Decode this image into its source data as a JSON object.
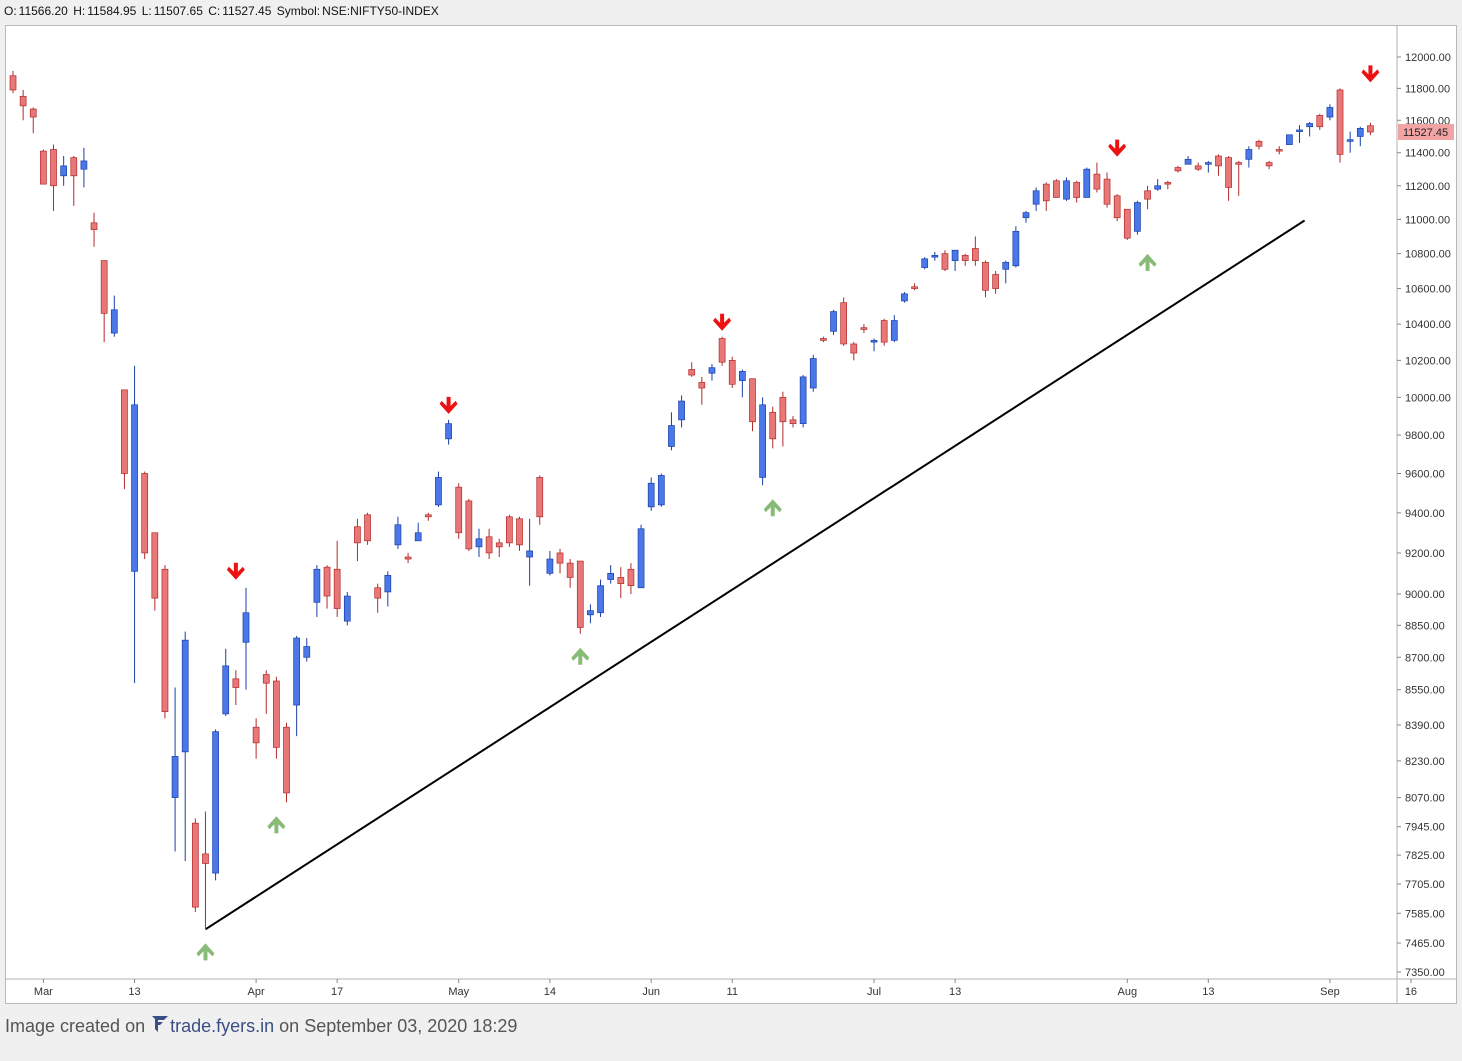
{
  "header": {
    "o_label": "O:",
    "o_value": "11566.20",
    "h_label": "H:",
    "h_value": "11584.95",
    "l_label": "L:",
    "l_value": "11507.65",
    "c_label": "C:",
    "c_value": "11527.45",
    "symbol_label": "Symbol:",
    "symbol_value": "NSE:NIFTY50-INDEX"
  },
  "footer": {
    "prefix": "Image created on",
    "brand": "trade.fyers.in",
    "suffix": "on September 03, 2020 18:29"
  },
  "colors": {
    "bull": "#4a78e8",
    "bear": "#e87878",
    "wick_bull": "#1a3fa8",
    "wick_bear": "#b22a2a",
    "trendline": "#000000",
    "down_arrow": "#ee1111",
    "up_arrow": "#88bb77",
    "last_price_bg": "#f2a3a3"
  },
  "chart_data": {
    "type": "candlestick",
    "symbol": "NSE:NIFTY50-INDEX",
    "scale": "log",
    "y_ticks": [
      "12000.00",
      "11800.00",
      "11600.00",
      "11400.00",
      "11200.00",
      "11000.00",
      "10800.00",
      "10600.00",
      "10400.00",
      "10200.00",
      "10000.00",
      "9800.00",
      "9600.00",
      "9400.00",
      "9200.00",
      "9000.00",
      "8850.00",
      "8700.00",
      "8550.00",
      "8390.00",
      "8230.00",
      "8070.00",
      "7945.00",
      "7825.00",
      "7705.00",
      "7585.00",
      "7465.00",
      "7350.00"
    ],
    "x_ticks": [
      "Mar",
      "13",
      "Apr",
      "17",
      "May",
      "14",
      "Jun",
      "11",
      "Jul",
      "13",
      "Aug",
      "13",
      "Sep",
      "16"
    ],
    "last_price": "11527.45",
    "candles": [
      {
        "date": "2020-02-27",
        "o": 11880,
        "h": 11910,
        "l": 11770,
        "c": 11790
      },
      {
        "date": "2020-02-28",
        "o": 11750,
        "h": 11790,
        "l": 11600,
        "c": 11690
      },
      {
        "date": "2020-03-02",
        "o": 11670,
        "h": 11680,
        "l": 11520,
        "c": 11620
      },
      {
        "date": "2020-03-03",
        "o": 11410,
        "h": 11420,
        "l": 11210,
        "c": 11210
      },
      {
        "date": "2020-03-04",
        "o": 11420,
        "h": 11450,
        "l": 11050,
        "c": 11200
      },
      {
        "date": "2020-03-05",
        "o": 11260,
        "h": 11380,
        "l": 11200,
        "c": 11320
      },
      {
        "date": "2020-03-06",
        "o": 11370,
        "h": 11380,
        "l": 11080,
        "c": 11260
      },
      {
        "date": "2020-03-09",
        "o": 11300,
        "h": 11430,
        "l": 11190,
        "c": 11350
      },
      {
        "date": "2020-03-10",
        "o": 10980,
        "h": 11040,
        "l": 10840,
        "c": 10940
      },
      {
        "date": "2020-03-11",
        "o": 10760,
        "h": 10760,
        "l": 10300,
        "c": 10460
      },
      {
        "date": "2020-03-12",
        "o": 10350,
        "h": 10560,
        "l": 10330,
        "c": 10480
      },
      {
        "date": "2020-03-13",
        "o": 10040,
        "h": 10040,
        "l": 9520,
        "c": 9600
      },
      {
        "date": "2020-03-16",
        "o": 9110,
        "h": 10170,
        "l": 8580,
        "c": 9960
      },
      {
        "date": "2020-03-17",
        "o": 9600,
        "h": 9610,
        "l": 9170,
        "c": 9200
      },
      {
        "date": "2020-03-18",
        "o": 9300,
        "h": 9300,
        "l": 8920,
        "c": 8980
      },
      {
        "date": "2020-03-19",
        "o": 9120,
        "h": 9140,
        "l": 8420,
        "c": 8450
      },
      {
        "date": "2020-03-20",
        "o": 8070,
        "h": 8560,
        "l": 7840,
        "c": 8250
      },
      {
        "date": "2020-03-23",
        "o": 8270,
        "h": 8820,
        "l": 7800,
        "c": 8780
      },
      {
        "date": "2020-03-24",
        "o": 7960,
        "h": 7980,
        "l": 7590,
        "c": 7610
      },
      {
        "date": "2020-03-25",
        "o": 7830,
        "h": 8010,
        "l": 7520,
        "c": 7790
      },
      {
        "date": "2020-03-26",
        "o": 7750,
        "h": 8370,
        "l": 7720,
        "c": 8360
      },
      {
        "date": "2020-03-27",
        "o": 8440,
        "h": 8740,
        "l": 8430,
        "c": 8660
      },
      {
        "date": "2020-03-30",
        "o": 8600,
        "h": 8640,
        "l": 8480,
        "c": 8560
      },
      {
        "date": "2020-03-31",
        "o": 8770,
        "h": 9030,
        "l": 8550,
        "c": 8910
      },
      {
        "date": "2020-04-01",
        "o": 8380,
        "h": 8420,
        "l": 8240,
        "c": 8310
      },
      {
        "date": "2020-04-02",
        "o": 8620,
        "h": 8640,
        "l": 8440,
        "c": 8580
      },
      {
        "date": "2020-04-03",
        "o": 8590,
        "h": 8610,
        "l": 8240,
        "c": 8290
      },
      {
        "date": "2020-04-06",
        "o": 8380,
        "h": 8400,
        "l": 8050,
        "c": 8090
      },
      {
        "date": "2020-04-07",
        "o": 8480,
        "h": 8800,
        "l": 8340,
        "c": 8790
      },
      {
        "date": "2020-04-08",
        "o": 8700,
        "h": 8790,
        "l": 8680,
        "c": 8750
      },
      {
        "date": "2020-04-09",
        "o": 8960,
        "h": 9140,
        "l": 8890,
        "c": 9120
      },
      {
        "date": "2020-04-13",
        "o": 9130,
        "h": 9140,
        "l": 8930,
        "c": 8990
      },
      {
        "date": "2020-04-15",
        "o": 9120,
        "h": 9260,
        "l": 8890,
        "c": 8930
      },
      {
        "date": "2020-04-16",
        "o": 8870,
        "h": 9010,
        "l": 8850,
        "c": 8990
      },
      {
        "date": "2020-04-17",
        "o": 9330,
        "h": 9370,
        "l": 9160,
        "c": 9250
      },
      {
        "date": "2020-04-20",
        "o": 9390,
        "h": 9400,
        "l": 9240,
        "c": 9260
      },
      {
        "date": "2020-04-21",
        "o": 9030,
        "h": 9050,
        "l": 8910,
        "c": 8980
      },
      {
        "date": "2020-04-22",
        "o": 9010,
        "h": 9110,
        "l": 8940,
        "c": 9090
      },
      {
        "date": "2020-04-23",
        "o": 9240,
        "h": 9380,
        "l": 9220,
        "c": 9340
      },
      {
        "date": "2020-04-24",
        "o": 9180,
        "h": 9200,
        "l": 9150,
        "c": 9170
      },
      {
        "date": "2020-04-27",
        "o": 9260,
        "h": 9350,
        "l": 9260,
        "c": 9300
      },
      {
        "date": "2020-04-28",
        "o": 9390,
        "h": 9400,
        "l": 9360,
        "c": 9380
      },
      {
        "date": "2020-04-29",
        "o": 9440,
        "h": 9610,
        "l": 9430,
        "c": 9580
      },
      {
        "date": "2020-04-30",
        "o": 9780,
        "h": 9880,
        "l": 9750,
        "c": 9860
      },
      {
        "date": "2020-05-04",
        "o": 9530,
        "h": 9550,
        "l": 9270,
        "c": 9300
      },
      {
        "date": "2020-05-05",
        "o": 9460,
        "h": 9470,
        "l": 9210,
        "c": 9220
      },
      {
        "date": "2020-05-06",
        "o": 9230,
        "h": 9320,
        "l": 9180,
        "c": 9270
      },
      {
        "date": "2020-05-07",
        "o": 9280,
        "h": 9320,
        "l": 9170,
        "c": 9200
      },
      {
        "date": "2020-05-08",
        "o": 9250,
        "h": 9270,
        "l": 9180,
        "c": 9230
      },
      {
        "date": "2020-05-11",
        "o": 9380,
        "h": 9390,
        "l": 9230,
        "c": 9250
      },
      {
        "date": "2020-05-12",
        "o": 9370,
        "h": 9380,
        "l": 9210,
        "c": 9240
      },
      {
        "date": "2020-05-13",
        "o": 9180,
        "h": 9370,
        "l": 9040,
        "c": 9210
      },
      {
        "date": "2020-05-14",
        "o": 9580,
        "h": 9590,
        "l": 9340,
        "c": 9380
      },
      {
        "date": "2020-05-15",
        "o": 9100,
        "h": 9210,
        "l": 9090,
        "c": 9170
      },
      {
        "date": "2020-05-18",
        "o": 9200,
        "h": 9220,
        "l": 9100,
        "c": 9150
      },
      {
        "date": "2020-05-19",
        "o": 9150,
        "h": 9170,
        "l": 9030,
        "c": 9080
      },
      {
        "date": "2020-05-20",
        "o": 9160,
        "h": 9160,
        "l": 8810,
        "c": 8840
      },
      {
        "date": "2020-05-21",
        "o": 8900,
        "h": 8950,
        "l": 8860,
        "c": 8920
      },
      {
        "date": "2020-05-22",
        "o": 8910,
        "h": 9070,
        "l": 8890,
        "c": 9040
      },
      {
        "date": "2020-05-26",
        "o": 9070,
        "h": 9140,
        "l": 9050,
        "c": 9100
      },
      {
        "date": "2020-05-27",
        "o": 9080,
        "h": 9130,
        "l": 8980,
        "c": 9050
      },
      {
        "date": "2020-05-28",
        "o": 9120,
        "h": 9150,
        "l": 9000,
        "c": 9040
      },
      {
        "date": "2020-05-29",
        "o": 9030,
        "h": 9340,
        "l": 9030,
        "c": 9320
      },
      {
        "date": "2020-06-01",
        "o": 9430,
        "h": 9580,
        "l": 9410,
        "c": 9550
      },
      {
        "date": "2020-06-02",
        "o": 9440,
        "h": 9600,
        "l": 9430,
        "c": 9590
      },
      {
        "date": "2020-06-03",
        "o": 9740,
        "h": 9920,
        "l": 9720,
        "c": 9850
      },
      {
        "date": "2020-06-04",
        "o": 9880,
        "h": 10010,
        "l": 9840,
        "c": 9980
      },
      {
        "date": "2020-06-05",
        "o": 10150,
        "h": 10190,
        "l": 10110,
        "c": 10120
      },
      {
        "date": "2020-06-08",
        "o": 10080,
        "h": 10110,
        "l": 9960,
        "c": 10050
      },
      {
        "date": "2020-06-09",
        "o": 10130,
        "h": 10180,
        "l": 10090,
        "c": 10160
      },
      {
        "date": "2020-06-10",
        "o": 10320,
        "h": 10330,
        "l": 10170,
        "c": 10190
      },
      {
        "date": "2020-06-11",
        "o": 10200,
        "h": 10220,
        "l": 10050,
        "c": 10070
      },
      {
        "date": "2020-06-12",
        "o": 10090,
        "h": 10150,
        "l": 10000,
        "c": 10140
      },
      {
        "date": "2020-06-15",
        "o": 10100,
        "h": 10100,
        "l": 9820,
        "c": 9870
      },
      {
        "date": "2020-06-16",
        "o": 9580,
        "h": 10000,
        "l": 9540,
        "c": 9960
      },
      {
        "date": "2020-06-17",
        "o": 9920,
        "h": 9950,
        "l": 9730,
        "c": 9780
      },
      {
        "date": "2020-06-18",
        "o": 10000,
        "h": 10030,
        "l": 9740,
        "c": 9870
      },
      {
        "date": "2020-06-19",
        "o": 9880,
        "h": 9900,
        "l": 9840,
        "c": 9860
      },
      {
        "date": "2020-06-22",
        "o": 9860,
        "h": 10120,
        "l": 9840,
        "c": 10110
      },
      {
        "date": "2020-06-23",
        "o": 10050,
        "h": 10230,
        "l": 10030,
        "c": 10210
      },
      {
        "date": "2020-06-24",
        "o": 10320,
        "h": 10330,
        "l": 10300,
        "c": 10310
      },
      {
        "date": "2020-06-25",
        "o": 10360,
        "h": 10480,
        "l": 10340,
        "c": 10470
      },
      {
        "date": "2020-06-26",
        "o": 10520,
        "h": 10550,
        "l": 10280,
        "c": 10290
      },
      {
        "date": "2020-06-29",
        "o": 10290,
        "h": 10300,
        "l": 10200,
        "c": 10240
      },
      {
        "date": "2020-06-30",
        "o": 10380,
        "h": 10400,
        "l": 10350,
        "c": 10370
      },
      {
        "date": "2020-07-01",
        "o": 10300,
        "h": 10320,
        "l": 10250,
        "c": 10310
      },
      {
        "date": "2020-07-02",
        "o": 10420,
        "h": 10430,
        "l": 10280,
        "c": 10300
      },
      {
        "date": "2020-07-03",
        "o": 10310,
        "h": 10450,
        "l": 10300,
        "c": 10420
      },
      {
        "date": "2020-07-06",
        "o": 10530,
        "h": 10580,
        "l": 10520,
        "c": 10570
      },
      {
        "date": "2020-07-07",
        "o": 10610,
        "h": 10630,
        "l": 10590,
        "c": 10600
      },
      {
        "date": "2020-07-08",
        "o": 10720,
        "h": 10780,
        "l": 10710,
        "c": 10770
      },
      {
        "date": "2020-07-09",
        "o": 10780,
        "h": 10810,
        "l": 10760,
        "c": 10790
      },
      {
        "date": "2020-07-10",
        "o": 10800,
        "h": 10820,
        "l": 10700,
        "c": 10710
      },
      {
        "date": "2020-07-13",
        "o": 10760,
        "h": 10810,
        "l": 10700,
        "c": 10820
      },
      {
        "date": "2020-07-14",
        "o": 10790,
        "h": 10800,
        "l": 10730,
        "c": 10760
      },
      {
        "date": "2020-07-15",
        "o": 10830,
        "h": 10900,
        "l": 10730,
        "c": 10760
      },
      {
        "date": "2020-07-16",
        "o": 10750,
        "h": 10760,
        "l": 10550,
        "c": 10590
      },
      {
        "date": "2020-07-17",
        "o": 10680,
        "h": 10700,
        "l": 10570,
        "c": 10600
      },
      {
        "date": "2020-07-20",
        "o": 10710,
        "h": 10760,
        "l": 10630,
        "c": 10750
      },
      {
        "date": "2020-07-21",
        "o": 10730,
        "h": 10960,
        "l": 10720,
        "c": 10930
      },
      {
        "date": "2020-07-22",
        "o": 11010,
        "h": 11050,
        "l": 10980,
        "c": 11040
      },
      {
        "date": "2020-07-23",
        "o": 11090,
        "h": 11190,
        "l": 11050,
        "c": 11170
      },
      {
        "date": "2020-07-24",
        "o": 11210,
        "h": 11220,
        "l": 11050,
        "c": 11110
      },
      {
        "date": "2020-07-27",
        "o": 11230,
        "h": 11240,
        "l": 11130,
        "c": 11130
      },
      {
        "date": "2020-07-28",
        "o": 11120,
        "h": 11250,
        "l": 11110,
        "c": 11230
      },
      {
        "date": "2020-07-29",
        "o": 11220,
        "h": 11230,
        "l": 11100,
        "c": 11130
      },
      {
        "date": "2020-07-30",
        "o": 11130,
        "h": 11310,
        "l": 11130,
        "c": 11300
      },
      {
        "date": "2020-07-31",
        "o": 11270,
        "h": 11340,
        "l": 11160,
        "c": 11180
      },
      {
        "date": "2020-08-03",
        "o": 11240,
        "h": 11280,
        "l": 11070,
        "c": 11090
      },
      {
        "date": "2020-08-04",
        "o": 11140,
        "h": 11150,
        "l": 10990,
        "c": 11010
      },
      {
        "date": "2020-08-05",
        "o": 11060,
        "h": 11060,
        "l": 10880,
        "c": 10890
      },
      {
        "date": "2020-08-06",
        "o": 10930,
        "h": 11110,
        "l": 10910,
        "c": 11100
      },
      {
        "date": "2020-08-07",
        "o": 11170,
        "h": 11200,
        "l": 11060,
        "c": 11120
      },
      {
        "date": "2020-08-10",
        "o": 11180,
        "h": 11240,
        "l": 11170,
        "c": 11200
      },
      {
        "date": "2020-08-11",
        "o": 11220,
        "h": 11230,
        "l": 11180,
        "c": 11210
      },
      {
        "date": "2020-08-12",
        "o": 11310,
        "h": 11320,
        "l": 11280,
        "c": 11290
      },
      {
        "date": "2020-08-13",
        "o": 11330,
        "h": 11380,
        "l": 11330,
        "c": 11360
      },
      {
        "date": "2020-08-14",
        "o": 11320,
        "h": 11340,
        "l": 11290,
        "c": 11300
      },
      {
        "date": "2020-08-17",
        "o": 11330,
        "h": 11350,
        "l": 11280,
        "c": 11340
      },
      {
        "date": "2020-08-18",
        "o": 11380,
        "h": 11390,
        "l": 11260,
        "c": 11320
      },
      {
        "date": "2020-08-19",
        "o": 11370,
        "h": 11380,
        "l": 11110,
        "c": 11190
      },
      {
        "date": "2020-08-20",
        "o": 11340,
        "h": 11350,
        "l": 11140,
        "c": 11330
      },
      {
        "date": "2020-08-21",
        "o": 11360,
        "h": 11440,
        "l": 11310,
        "c": 11420
      },
      {
        "date": "2020-08-24",
        "o": 11470,
        "h": 11480,
        "l": 11420,
        "c": 11440
      },
      {
        "date": "2020-08-25",
        "o": 11340,
        "h": 11350,
        "l": 11300,
        "c": 11320
      },
      {
        "date": "2020-08-26",
        "o": 11420,
        "h": 11440,
        "l": 11390,
        "c": 11410
      },
      {
        "date": "2020-08-27",
        "o": 11450,
        "h": 11510,
        "l": 11450,
        "c": 11510
      },
      {
        "date": "2020-08-28",
        "o": 11530,
        "h": 11570,
        "l": 11460,
        "c": 11540
      },
      {
        "date": "2020-08-31",
        "o": 11560,
        "h": 11590,
        "l": 11500,
        "c": 11580
      },
      {
        "date": "2020-09-01",
        "o": 11630,
        "h": 11640,
        "l": 11540,
        "c": 11560
      },
      {
        "date": "2020-09-02",
        "o": 11620,
        "h": 11700,
        "l": 11600,
        "c": 11680
      },
      {
        "date": "2020-09-03",
        "o": 11790,
        "h": 11800,
        "l": 11340,
        "c": 11390
      },
      {
        "date": "2020-09-04",
        "o": 11470,
        "h": 11530,
        "l": 11400,
        "c": 11480
      },
      {
        "date": "2020-09-07",
        "o": 11500,
        "h": 11560,
        "l": 11440,
        "c": 11550
      },
      {
        "date": "2020-09-08",
        "o": 11566.2,
        "h": 11584.95,
        "l": 11507.65,
        "c": 11527.45
      }
    ],
    "trendline": {
      "from_index": 19,
      "from_price": 7520,
      "slope_log_per_bar": 0.0035
    },
    "down_arrows": [
      {
        "index": 22,
        "price": 9040
      },
      {
        "index": 43,
        "price": 9880
      },
      {
        "index": 70,
        "price": 10330
      },
      {
        "index": 109,
        "price": 11340
      },
      {
        "index": 134,
        "price": 11800
      }
    ],
    "up_arrows": [
      {
        "index": 19,
        "price": 7520
      },
      {
        "index": 26,
        "price": 8050
      },
      {
        "index": 56,
        "price": 8810
      },
      {
        "index": 75,
        "price": 9540
      },
      {
        "index": 112,
        "price": 10880
      }
    ]
  }
}
